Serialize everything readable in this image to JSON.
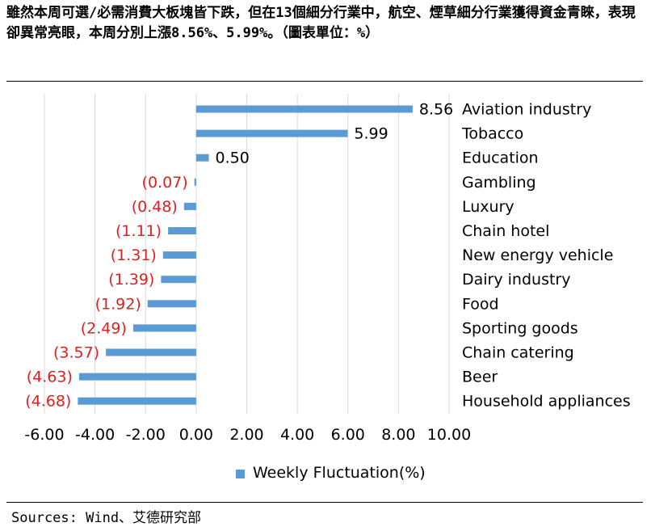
{
  "header": {
    "title": "雖然本周可選/必需消費大板塊皆下跌，但在13個細分行業中，航空、煙草細分行業獲得資金青睞，表現卻異常亮眼，本周分別上漲8.56%、5.99%。（圖表單位：%）"
  },
  "footer": {
    "source": "Sources: Wind、艾德研究部"
  },
  "chart_data": {
    "type": "bar",
    "orientation": "horizontal",
    "title": "",
    "categories": [
      "Aviation industry",
      "Tobacco",
      "Education",
      "Gambling",
      "Luxury",
      "Chain hotel",
      "New energy vehicle",
      "Dairy industry",
      "Food",
      "Sporting goods",
      "Chain catering",
      "Beer",
      "Household appliances"
    ],
    "series": [
      {
        "name": "Weekly Fluctuation(%)",
        "values": [
          8.56,
          5.99,
          0.5,
          -0.07,
          -0.48,
          -1.11,
          -1.31,
          -1.39,
          -1.92,
          -2.49,
          -3.57,
          -4.63,
          -4.68
        ],
        "labels": [
          "8.56",
          "5.99",
          "0.50",
          "(0.07)",
          "(0.48)",
          "(1.11)",
          "(1.31)",
          "(1.39)",
          "(1.92)",
          "(2.49)",
          "(3.57)",
          "(4.63)",
          "(4.68)"
        ]
      }
    ],
    "xlim": [
      -6,
      10
    ],
    "xticks": [
      "-6.00",
      "-4.00",
      "-2.00",
      "0.00",
      "2.00",
      "4.00",
      "6.00",
      "8.00",
      "10.00"
    ],
    "grid": true,
    "legend_position": "bottom",
    "colors": {
      "bar": "#5b9bd5",
      "negative_label": "#e02020",
      "grid": "#d9d9d9"
    }
  }
}
